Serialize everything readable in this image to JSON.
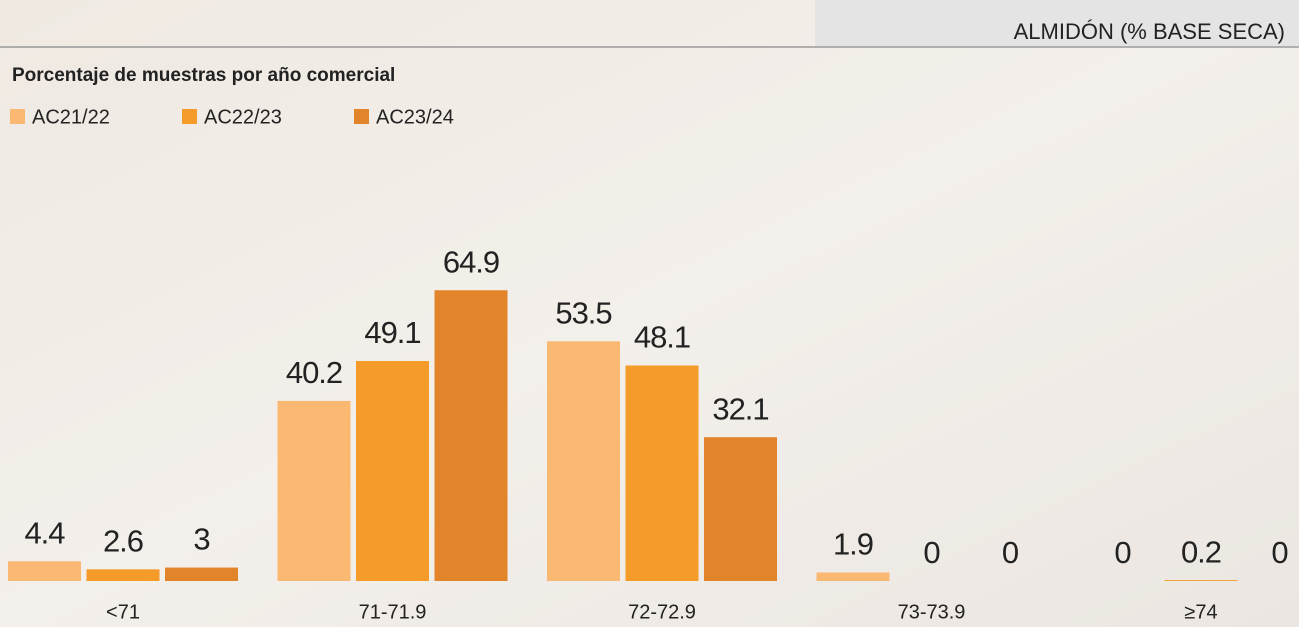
{
  "chart_data": {
    "type": "bar",
    "header": "ALMIDÓN (% BASE SECA)",
    "title": "Porcentaje de muestras por año comercial",
    "categories": [
      "<71",
      "71-71.9",
      "72-72.9",
      "73-73.9",
      "≥74"
    ],
    "series": [
      {
        "name": "AC21/22",
        "color": "#fbb872",
        "values": [
          4.4,
          40.2,
          53.5,
          1.9,
          0
        ]
      },
      {
        "name": "AC22/23",
        "color": "#f59b2a",
        "values": [
          2.6,
          49.1,
          48.1,
          0,
          0.2
        ]
      },
      {
        "name": "AC23/24",
        "color": "#e2842a",
        "values": [
          3,
          64.9,
          32.1,
          0,
          0
        ]
      }
    ],
    "ylim": [
      0,
      70
    ]
  }
}
